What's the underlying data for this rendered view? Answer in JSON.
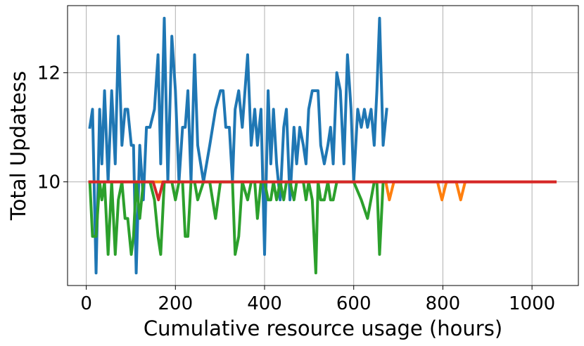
{
  "chart_data": {
    "type": "line",
    "xlabel": "Cumulative resource usage (hours)",
    "ylabel": "Total Updatess",
    "xlim": [
      -42,
      1104
    ],
    "ylim": [
      8.1,
      13.23
    ],
    "xticks": [
      0,
      200,
      400,
      600,
      800,
      1000
    ],
    "yticks": [
      10,
      12
    ],
    "grid": true,
    "series": [
      {
        "color": "#1f77b4",
        "x": [
          8,
          14,
          22,
          30,
          35,
          41,
          49,
          57,
          65,
          72,
          80,
          87,
          93,
          101,
          106,
          112,
          120,
          128,
          135,
          143,
          153,
          161,
          167,
          175,
          183,
          192,
          200,
          208,
          216,
          222,
          228,
          235,
          243,
          250,
          263,
          277,
          290,
          301,
          307,
          313,
          321,
          328,
          334,
          342,
          350,
          362,
          370,
          378,
          384,
          392,
          400,
          408,
          414,
          420,
          427,
          435,
          443,
          449,
          457,
          466,
          472,
          479,
          487,
          493,
          499,
          507,
          520,
          526,
          534,
          542,
          548,
          554,
          562,
          570,
          578,
          586,
          594,
          600,
          609,
          617,
          624,
          631,
          639,
          646,
          652,
          658,
          666,
          674
        ],
        "values": [
          11.0,
          11.33,
          8.33,
          11.33,
          10.33,
          11.67,
          10.0,
          11.67,
          10.33,
          12.67,
          10.67,
          11.33,
          11.33,
          10.67,
          10.67,
          8.33,
          10.67,
          9.67,
          11.0,
          11.0,
          11.33,
          12.33,
          10.33,
          13.0,
          10.0,
          12.67,
          11.67,
          10.0,
          11.0,
          11.0,
          11.67,
          10.0,
          12.33,
          10.67,
          10.0,
          10.67,
          11.33,
          11.67,
          11.67,
          11.0,
          11.0,
          10.0,
          11.33,
          11.67,
          11.0,
          12.33,
          10.67,
          11.33,
          10.67,
          11.33,
          8.67,
          11.67,
          10.33,
          11.33,
          10.33,
          9.67,
          11.0,
          11.33,
          9.67,
          11.0,
          10.33,
          11.0,
          10.67,
          10.33,
          11.33,
          11.67,
          11.67,
          10.67,
          10.33,
          10.67,
          11.0,
          10.33,
          12.0,
          11.67,
          10.33,
          12.33,
          11.33,
          10.0,
          11.33,
          11.0,
          11.33,
          11.0,
          11.33,
          10.67,
          11.67,
          13.0,
          10.67,
          11.33
        ]
      },
      {
        "color": "#ff7f0e",
        "x": [
          8,
          672,
          680,
          690,
          788,
          798,
          808,
          830,
          840,
          850,
          1052
        ],
        "values": [
          10,
          10,
          9.67,
          10,
          10,
          9.67,
          10,
          10,
          9.67,
          10,
          10
        ]
      },
      {
        "color": "#2ca02c",
        "x": [
          8,
          14,
          22,
          30,
          35,
          41,
          49,
          57,
          65,
          72,
          80,
          87,
          93,
          101,
          106,
          112,
          120,
          128,
          135,
          143,
          153,
          161,
          167,
          175,
          183,
          192,
          200,
          208,
          216,
          222,
          228,
          235,
          243,
          250,
          263,
          277,
          290,
          301,
          313,
          321,
          328,
          334,
          342,
          350,
          362,
          370,
          378,
          384,
          392,
          400,
          408,
          414,
          420,
          427,
          435,
          443,
          449,
          457,
          466,
          472,
          479,
          487,
          493,
          499,
          507,
          515,
          520,
          526,
          534,
          542,
          548,
          554,
          562,
          570,
          578,
          586,
          600,
          617,
          631,
          646,
          652,
          658,
          666,
          674
        ],
        "values": [
          10,
          9.0,
          9.0,
          10,
          9.67,
          10,
          8.67,
          10,
          8.67,
          9.67,
          10,
          9.33,
          9.33,
          8.67,
          9.0,
          10,
          9.33,
          10,
          10,
          10,
          9.67,
          9.0,
          8.67,
          10,
          10,
          10,
          9.67,
          10,
          10,
          9.0,
          9.0,
          10,
          10,
          9.67,
          10,
          10,
          9.33,
          10,
          10,
          10,
          10,
          8.67,
          9.0,
          10,
          9.67,
          10,
          10,
          9.33,
          10,
          10,
          9.67,
          9.67,
          10,
          9.67,
          10,
          9.67,
          10,
          10,
          9.67,
          10,
          10,
          10,
          9.67,
          10,
          9.67,
          8.33,
          10,
          9.67,
          9.67,
          10,
          9.67,
          9.67,
          10,
          10,
          10,
          10,
          10,
          9.67,
          9.33,
          10,
          10,
          8.67,
          10,
          10
        ]
      },
      {
        "color": "#d62728",
        "x": [
          8,
          150,
          162,
          172,
          1052
        ],
        "values": [
          10,
          10,
          9.67,
          10,
          10
        ]
      }
    ]
  }
}
